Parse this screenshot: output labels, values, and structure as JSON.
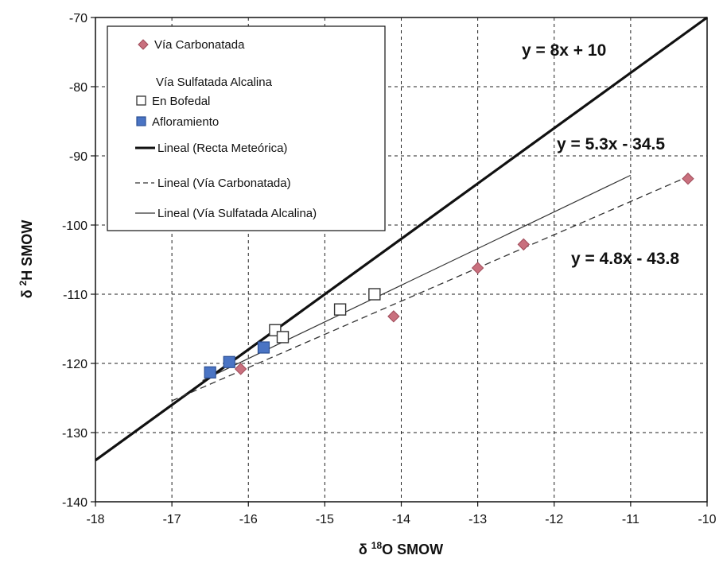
{
  "chart_data": {
    "type": "scatter",
    "title": "",
    "xlabel": {
      "prefix": "δ ",
      "sup": "18",
      "suffix": "O SMOW"
    },
    "ylabel": {
      "prefix": "δ ",
      "sup": "2",
      "suffix": "H SMOW"
    },
    "xlim": [
      -18,
      -10
    ],
    "ylim": [
      -140,
      -70
    ],
    "x_ticks": [
      -18,
      -17,
      -16,
      -15,
      -14,
      -13,
      -12,
      -11,
      -10
    ],
    "y_ticks": [
      -70,
      -80,
      -90,
      -100,
      -110,
      -120,
      -130,
      -140
    ],
    "grid": true,
    "legend_position": "top-left",
    "legend_header": "Vía Sulfatada Alcalina",
    "series": [
      {
        "name": "Vía Carbonatada",
        "marker": "diamond",
        "color": "#c9707e",
        "points": [
          [
            -16.1,
            -120.8
          ],
          [
            -14.1,
            -113.2
          ],
          [
            -13.0,
            -106.2
          ],
          [
            -12.4,
            -102.8
          ],
          [
            -10.25,
            -93.3
          ]
        ]
      },
      {
        "name": "En Bofedal",
        "marker": "square-open",
        "color": "#333333",
        "points": [
          [
            -15.65,
            -115.2
          ],
          [
            -15.55,
            -116.2
          ],
          [
            -14.8,
            -112.2
          ],
          [
            -14.35,
            -110.0
          ]
        ]
      },
      {
        "name": "Afloramiento",
        "marker": "square-filled",
        "color": "#4a74c4",
        "points": [
          [
            -16.5,
            -121.3
          ],
          [
            -16.25,
            -119.8
          ],
          [
            -15.8,
            -117.7
          ]
        ]
      }
    ],
    "lines": [
      {
        "name": "Lineal (Recta Meteórica)",
        "style": "thick",
        "slope": 8,
        "intercept": 10,
        "x_range": [
          -18,
          -10
        ],
        "equation": "y = 8x + 10"
      },
      {
        "name": "Lineal (Vía Carbonatada)",
        "style": "dashed",
        "slope": 4.8,
        "intercept": -43.8,
        "x_range": [
          -17,
          -10.25
        ],
        "equation": "y = 4.8x - 43.8"
      },
      {
        "name": "Lineal (Vía Sulfatada Alcalina)",
        "style": "thin",
        "slope": 5.3,
        "intercept": -34.5,
        "x_range": [
          -16.6,
          -11
        ],
        "equation": "y = 5.3x - 34.5"
      }
    ]
  }
}
